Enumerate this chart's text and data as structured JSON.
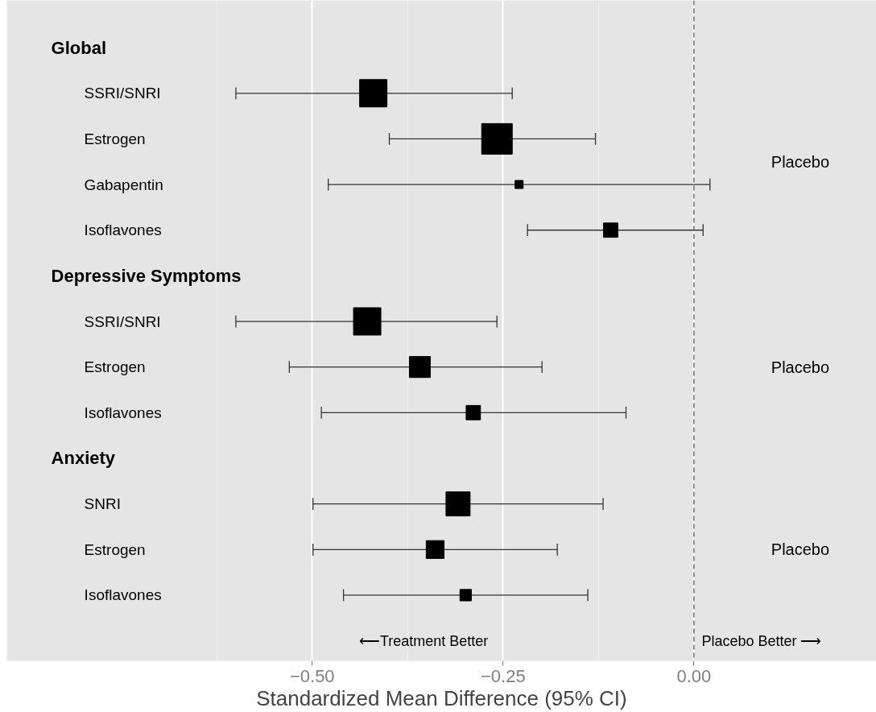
{
  "chart_data": {
    "type": "bubble",
    "orientation": "horizontal",
    "marker": "square",
    "xlabel": "Standardized Mean Difference (95% CI)",
    "categories": [
      "Global",
      "SSRI/SNRI",
      "Estrogen",
      "Gabapentin",
      "Isoflavones",
      "Depressive Symptoms",
      "SSRI/SNRI",
      "Estrogen",
      "Isoflavones",
      "Anxiety",
      "SNRI",
      "Estrogen",
      "Isoflavones"
    ],
    "values": [
      null,
      -0.42,
      -0.258,
      -0.229,
      -0.109,
      null,
      -0.428,
      -0.359,
      -0.289,
      null,
      -0.309,
      -0.339,
      -0.299
    ],
    "errors": [
      null,
      [
        -0.6,
        -0.238
      ],
      [
        -0.399,
        -0.129
      ],
      [
        -0.479,
        0.021
      ],
      [
        -0.218,
        0.012
      ],
      null,
      [
        -0.6,
        -0.258
      ],
      [
        -0.53,
        -0.199
      ],
      [
        -0.488,
        -0.089
      ],
      null,
      [
        -0.499,
        -0.119
      ],
      [
        -0.499,
        -0.179
      ],
      [
        -0.459,
        -0.139
      ]
    ],
    "sizes": [
      null,
      0.8,
      1,
      0.07,
      0.22,
      null,
      0.8,
      0.47,
      0.22,
      null,
      0.62,
      0.34,
      0.14
    ],
    "color": "#000000",
    "xlim": [
      -0.9,
      0.239
    ],
    "xticks": [
      {
        "value": -0.625,
        "label": null
      },
      {
        "value": -0.5,
        "label": "−0.50"
      },
      {
        "value": -0.375,
        "label": null
      },
      {
        "value": -0.25,
        "label": "−0.25"
      },
      {
        "value": -0.125,
        "label": null
      },
      {
        "value": 0,
        "label": "0.00"
      }
    ],
    "grid": "x",
    "ref_lines": [
      {
        "axis": "x",
        "value": 0,
        "line_style": "dashed",
        "color": "#555555"
      }
    ],
    "annotations": [
      "Placebo",
      "Placebo",
      "Placebo",
      "⟵Treatment Better",
      "Placebo Better ⟶"
    ]
  }
}
